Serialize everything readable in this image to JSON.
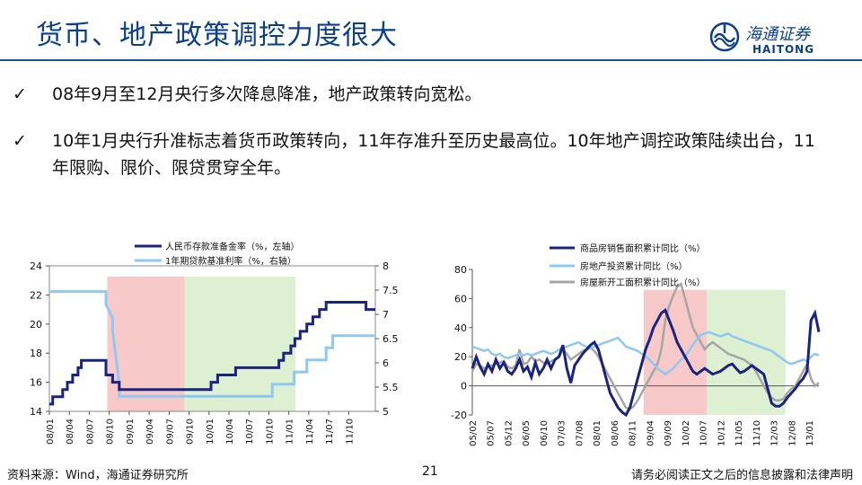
{
  "header": {
    "title": "货币、地产政策调控力度很大"
  },
  "logo": {
    "cn": "海通证券",
    "en": "HAITONG"
  },
  "bullets": [
    {
      "mark": "✓",
      "text": "08年9月至12月央行多次降息降准，地产政策转向宽松。"
    },
    {
      "mark": "✓",
      "text": "10年1月央行升准标志着货币政策转向，11年存准升至历史最高位。10年地产调控政策陆续出台，11年限购、限价、限贷贯穿全年。"
    }
  ],
  "footer": {
    "source": "资料来源：Wind，海通证券研究所",
    "page": "21",
    "disclaimer": "请务必阅读正文之后的信息披露和法律声明"
  },
  "colors": {
    "navy": "#1a237e",
    "light_blue": "#8fc8f0",
    "gray": "#a6a6a6",
    "pink": "#f8c9c9",
    "green": "#ddf0d2",
    "title_blue": "#0b3f8a"
  },
  "chart_data": [
    {
      "type": "line",
      "legend": [
        "人民币存款准备金率（%，左轴）",
        "1年期贷款基准利率（%，右轴）"
      ],
      "xticks": [
        "08/01",
        "08/04",
        "08/07",
        "08/10",
        "09/01",
        "09/04",
        "09/07",
        "09/10",
        "10/01",
        "10/04",
        "10/07",
        "10/10",
        "11/01",
        "11/04",
        "11/07",
        "11/10"
      ],
      "ylim_left": [
        14,
        24
      ],
      "yticks_left": [
        14,
        16,
        18,
        20,
        22,
        24
      ],
      "ylim_right": [
        5,
        8
      ],
      "yticks_right": [
        "5",
        "5.5",
        "6",
        "6.5",
        "7",
        "7.5",
        "8"
      ],
      "shaded": [
        {
          "from": 8.7,
          "to": 20.3,
          "color": "pink"
        },
        {
          "from": 20.3,
          "to": 37,
          "color": "green"
        }
      ],
      "series": [
        {
          "name": "人民币存款准备金率（%，左轴）",
          "axis": "left",
          "color": "navy",
          "points": [
            [
              0,
              14.5
            ],
            [
              0.5,
              14.5
            ],
            [
              0.5,
              15
            ],
            [
              2,
              15
            ],
            [
              2,
              15.5
            ],
            [
              2.7,
              15.5
            ],
            [
              2.7,
              16
            ],
            [
              3.5,
              16
            ],
            [
              3.5,
              16.5
            ],
            [
              4.3,
              16.5
            ],
            [
              4.3,
              17
            ],
            [
              4.8,
              17
            ],
            [
              4.8,
              17.5
            ],
            [
              8.5,
              17.5
            ],
            [
              8.5,
              16.5
            ],
            [
              9.5,
              16.5
            ],
            [
              9.5,
              16
            ],
            [
              10.5,
              16
            ],
            [
              10.5,
              15.5
            ],
            [
              24.3,
              15.5
            ],
            [
              24.3,
              16
            ],
            [
              25.3,
              16
            ],
            [
              25.3,
              16.5
            ],
            [
              28,
              16.5
            ],
            [
              28,
              17
            ],
            [
              34.5,
              17
            ],
            [
              34.5,
              17.5
            ],
            [
              35.2,
              17.5
            ],
            [
              35.2,
              18
            ],
            [
              36.3,
              18
            ],
            [
              36.3,
              18.5
            ],
            [
              36.9,
              18.5
            ],
            [
              36.9,
              19
            ],
            [
              37.7,
              19
            ],
            [
              37.7,
              19.5
            ],
            [
              38.7,
              19.5
            ],
            [
              38.7,
              20
            ],
            [
              39.6,
              20
            ],
            [
              39.6,
              20.5
            ],
            [
              40.6,
              20.5
            ],
            [
              40.6,
              21
            ],
            [
              41.6,
              21
            ],
            [
              41.6,
              21.5
            ],
            [
              47.6,
              21.5
            ],
            [
              47.6,
              21
            ],
            [
              49,
              21
            ]
          ]
        },
        {
          "name": "1年期贷款基准利率（%，右轴）",
          "axis": "right",
          "color": "light_blue",
          "points": [
            [
              0,
              7.47
            ],
            [
              8.5,
              7.47
            ],
            [
              8.5,
              7.2
            ],
            [
              9.5,
              6.93
            ],
            [
              9.5,
              6.66
            ],
            [
              10.5,
              5.58
            ],
            [
              10.5,
              5.31
            ],
            [
              33.5,
              5.31
            ],
            [
              33.5,
              5.56
            ],
            [
              36.8,
              5.56
            ],
            [
              36.8,
              5.81
            ],
            [
              38.7,
              5.81
            ],
            [
              38.7,
              6.06
            ],
            [
              41.6,
              6.06
            ],
            [
              41.6,
              6.31
            ],
            [
              42.6,
              6.31
            ],
            [
              42.6,
              6.56
            ],
            [
              49,
              6.56
            ]
          ]
        }
      ]
    },
    {
      "type": "line",
      "legend": [
        "商品房销售面积累计同比（%）",
        "房地产投资累计同比（%）",
        "房屋新开工面积累计同比（%）"
      ],
      "xticks": [
        "05/02",
        "05/07",
        "05/12",
        "06/05",
        "06/10",
        "07/03",
        "07/08",
        "08/01",
        "08/06",
        "08/11",
        "09/04",
        "09/09",
        "10/02",
        "10/07",
        "10/12",
        "11/05",
        "11/10",
        "12/03",
        "12/08",
        "13/01"
      ],
      "ylim": [
        -20,
        80
      ],
      "yticks": [
        -20,
        0,
        20,
        40,
        60,
        80
      ],
      "shaded": [
        {
          "from": 43.5,
          "to": 59.5,
          "color": "pink"
        },
        {
          "from": 59.5,
          "to": 79.5,
          "color": "green"
        }
      ],
      "series": [
        {
          "name": "商品房销售面积累计同比（%）",
          "color": "navy",
          "values": [
            12,
            20,
            13,
            8,
            15,
            10,
            18,
            12,
            16,
            10,
            8,
            12,
            18,
            10,
            13,
            6,
            16,
            8,
            12,
            18,
            12,
            18,
            20,
            28,
            12,
            2,
            14,
            18,
            22,
            25,
            28,
            30,
            25,
            15,
            5,
            -5,
            -10,
            -15,
            -18,
            -20,
            -15,
            -5,
            5,
            15,
            25,
            32,
            40,
            45,
            50,
            52,
            45,
            38,
            30,
            25,
            20,
            15,
            10,
            8,
            10,
            12,
            10,
            8,
            9,
            10,
            12,
            14,
            15,
            12,
            9,
            10,
            12,
            14,
            12,
            10,
            8,
            -2,
            -12,
            -14,
            -14,
            -12,
            -8,
            -5,
            -2,
            2,
            5,
            10,
            45,
            50,
            37
          ]
        },
        {
          "name": "房地产投资累计同比（%）",
          "color": "light_blue",
          "values": [
            27,
            26,
            25,
            24,
            25,
            22,
            21,
            22,
            20,
            19,
            20,
            21,
            22,
            21,
            22,
            21,
            22,
            23,
            24,
            23,
            22,
            23,
            25,
            26,
            27,
            28,
            29,
            30,
            28,
            27,
            26,
            27,
            28,
            29,
            30,
            31,
            32,
            33,
            30,
            27,
            26,
            25,
            24,
            22,
            20,
            18,
            15,
            12,
            10,
            8,
            10,
            12,
            15,
            18,
            20,
            24,
            28,
            32,
            35,
            36,
            37,
            36,
            35,
            34,
            35,
            36,
            34,
            33,
            32,
            31,
            30,
            29,
            28,
            27,
            26,
            25,
            24,
            22,
            20,
            18,
            16,
            15,
            16,
            17,
            18,
            17,
            20,
            22,
            21
          ]
        },
        {
          "name": "房屋新开工面积累计同比（%）",
          "color": "gray",
          "values": [
            10,
            15,
            14,
            12,
            13,
            14,
            15,
            16,
            17,
            13,
            12,
            14,
            25,
            15,
            16,
            20,
            17,
            18,
            16,
            15,
            17,
            18,
            20,
            25,
            22,
            18,
            20,
            22,
            24,
            25,
            26,
            24,
            20,
            15,
            10,
            5,
            0,
            -5,
            -10,
            -15,
            -16,
            -14,
            -10,
            -5,
            0,
            5,
            10,
            15,
            25,
            45,
            55,
            62,
            68,
            70,
            60,
            50,
            40,
            35,
            30,
            25,
            28,
            30,
            28,
            26,
            24,
            22,
            21,
            20,
            19,
            18,
            16,
            14,
            10,
            5,
            0,
            -5,
            -8,
            -10,
            -10,
            -9,
            -5,
            -2,
            0,
            5,
            10,
            15,
            5,
            0,
            2
          ]
        }
      ]
    }
  ]
}
